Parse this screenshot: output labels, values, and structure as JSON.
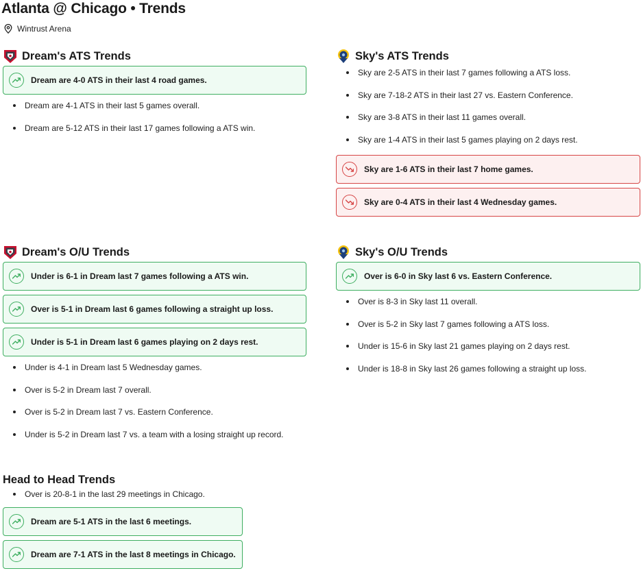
{
  "page": {
    "title": "Atlanta @ Chicago • Trends",
    "venue": "Wintrust Arena"
  },
  "colors": {
    "up_border": "#3eae60",
    "up_bg": "#effbf3",
    "down_border": "#d64545",
    "down_bg": "#fdf0f0"
  },
  "dream_ats": {
    "heading": "Dream's ATS Trends",
    "cards": [
      {
        "text": "Dream are 4-0 ATS in their last 4 road games.",
        "trend": "up"
      }
    ],
    "bullets": [
      "Dream are 4-1 ATS in their last 5 games overall.",
      "Dream are 5-12 ATS in their last 17 games following a ATS win."
    ]
  },
  "sky_ats": {
    "heading": "Sky's ATS Trends",
    "bullets": [
      "Sky are 2-5 ATS in their last 7 games following a ATS loss.",
      "Sky are 7-18-2 ATS in their last 27 vs. Eastern Conference.",
      "Sky are 3-8 ATS in their last 11 games overall.",
      "Sky are 1-4 ATS in their last 5 games playing on 2 days rest."
    ],
    "cards": [
      {
        "text": "Sky are 1-6 ATS in their last 7 home games.",
        "trend": "down"
      },
      {
        "text": "Sky are 0-4 ATS in their last 4 Wednesday games.",
        "trend": "down"
      }
    ]
  },
  "dream_ou": {
    "heading": "Dream's O/U Trends",
    "cards": [
      {
        "text": "Under is 6-1 in Dream last 7 games following a ATS win.",
        "trend": "up"
      },
      {
        "text": "Over is 5-1 in Dream last 6 games following a straight up loss.",
        "trend": "up"
      },
      {
        "text": "Under is 5-1 in Dream last 6 games playing on 2 days rest.",
        "trend": "up"
      }
    ],
    "bullets": [
      "Under is 4-1 in Dream last 5 Wednesday games.",
      "Over is 5-2 in Dream last 7 overall.",
      "Over is 5-2 in Dream last 7 vs. Eastern Conference.",
      "Under is 5-2 in Dream last 7 vs. a team with a losing straight up record."
    ]
  },
  "sky_ou": {
    "heading": "Sky's O/U Trends",
    "cards": [
      {
        "text": "Over is 6-0 in Sky last 6 vs. Eastern Conference.",
        "trend": "up"
      }
    ],
    "bullets": [
      "Over is 8-3 in Sky last 11 overall.",
      "Over is 5-2 in Sky last 7 games following a ATS loss.",
      "Under is 15-6 in Sky last 21 games playing on 2 days rest.",
      "Under is 18-8 in Sky last 26 games following a straight up loss."
    ]
  },
  "h2h": {
    "heading": "Head to Head Trends",
    "bullets": [
      "Over is 20-8-1 in the last 29 meetings in Chicago."
    ],
    "cards": [
      {
        "text": "Dream are 5-1 ATS in the last 6 meetings.",
        "trend": "up"
      },
      {
        "text": "Dream are 7-1 ATS in the last 8 meetings in Chicago.",
        "trend": "up"
      }
    ]
  }
}
